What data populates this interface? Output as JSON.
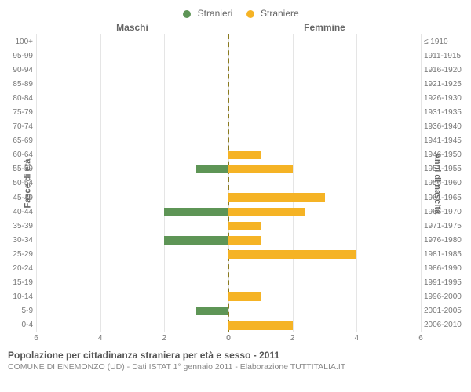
{
  "chart": {
    "type": "population-pyramid-bar",
    "legend": {
      "items": [
        {
          "label": "Stranieri",
          "color": "#5e9556"
        },
        {
          "label": "Straniere",
          "color": "#f5b325"
        }
      ]
    },
    "column_titles": {
      "left": "Maschi",
      "right": "Femmine"
    },
    "y_left_title": "Fasce di età",
    "y_right_title": "Anni di nascita",
    "x_ticks_left": [
      6,
      4,
      2,
      0
    ],
    "x_ticks_right": [
      0,
      2,
      4,
      6
    ],
    "xmax": 6,
    "series_colors": {
      "male": "#5e9556",
      "female": "#f5b325"
    },
    "grid_color": "#e5e5e5",
    "center_line_color": "#8a7a1f",
    "background_color": "#ffffff",
    "bar_height_ratio": 0.62,
    "rows": [
      {
        "age": "100+",
        "birth": "≤ 1910",
        "male": 0,
        "female": 0
      },
      {
        "age": "95-99",
        "birth": "1911-1915",
        "male": 0,
        "female": 0
      },
      {
        "age": "90-94",
        "birth": "1916-1920",
        "male": 0,
        "female": 0
      },
      {
        "age": "85-89",
        "birth": "1921-1925",
        "male": 0,
        "female": 0
      },
      {
        "age": "80-84",
        "birth": "1926-1930",
        "male": 0,
        "female": 0
      },
      {
        "age": "75-79",
        "birth": "1931-1935",
        "male": 0,
        "female": 0
      },
      {
        "age": "70-74",
        "birth": "1936-1940",
        "male": 0,
        "female": 0
      },
      {
        "age": "65-69",
        "birth": "1941-1945",
        "male": 0,
        "female": 0
      },
      {
        "age": "60-64",
        "birth": "1946-1950",
        "male": 0,
        "female": 1
      },
      {
        "age": "55-59",
        "birth": "1951-1955",
        "male": 1,
        "female": 2
      },
      {
        "age": "50-54",
        "birth": "1956-1960",
        "male": 0,
        "female": 0
      },
      {
        "age": "45-49",
        "birth": "1961-1965",
        "male": 0,
        "female": 3
      },
      {
        "age": "40-44",
        "birth": "1966-1970",
        "male": 2,
        "female": 2.4
      },
      {
        "age": "35-39",
        "birth": "1971-1975",
        "male": 0,
        "female": 1
      },
      {
        "age": "30-34",
        "birth": "1976-1980",
        "male": 2,
        "female": 1
      },
      {
        "age": "25-29",
        "birth": "1981-1985",
        "male": 0,
        "female": 4
      },
      {
        "age": "20-24",
        "birth": "1986-1990",
        "male": 0,
        "female": 0
      },
      {
        "age": "15-19",
        "birth": "1991-1995",
        "male": 0,
        "female": 0
      },
      {
        "age": "10-14",
        "birth": "1996-2000",
        "male": 0,
        "female": 1
      },
      {
        "age": "5-9",
        "birth": "2001-2005",
        "male": 1,
        "female": 0
      },
      {
        "age": "0-4",
        "birth": "2006-2010",
        "male": 0,
        "female": 2
      }
    ]
  },
  "caption": {
    "title": "Popolazione per cittadinanza straniera per età e sesso - 2011",
    "subtitle": "COMUNE DI ENEMONZO (UD) - Dati ISTAT 1° gennaio 2011 - Elaborazione TUTTITALIA.IT"
  }
}
